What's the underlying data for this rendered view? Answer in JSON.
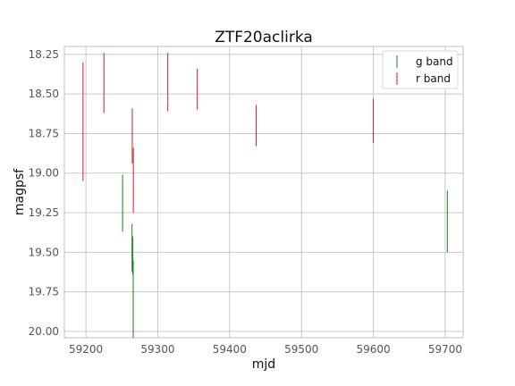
{
  "chart_data": {
    "type": "scatter",
    "title": "ZTF20aclirka",
    "xlabel": "mjd",
    "ylabel": "magpsf",
    "xlim": [
      59170,
      59725
    ],
    "ylim": [
      20.04,
      18.2
    ],
    "y_inverted": true,
    "grid": true,
    "legend_position": "top-right",
    "x_ticks": [
      59200,
      59300,
      59400,
      59500,
      59600,
      59700
    ],
    "y_ticks": [
      18.25,
      18.5,
      18.75,
      19.0,
      19.25,
      19.5,
      19.75,
      20.0
    ],
    "y_tick_labels": [
      "18.25",
      "18.50",
      "18.75",
      "19.00",
      "19.25",
      "19.50",
      "19.75",
      "20.00"
    ],
    "series": [
      {
        "name": "g band",
        "color": "#1a7f1a",
        "points": [
          {
            "x": 59251.0,
            "ymin": 19.01,
            "ymax": 19.37
          },
          {
            "x": 59264.2,
            "ymin": 19.32,
            "ymax": 19.62
          },
          {
            "x": 59265.1,
            "ymin": 19.4,
            "ymax": 19.64
          },
          {
            "x": 59265.8,
            "ymin": 19.55,
            "ymax": 20.04
          },
          {
            "x": 59703.0,
            "ymin": 19.11,
            "ymax": 19.5
          }
        ]
      },
      {
        "name": "r band",
        "color": "#cc1f1f",
        "points": [
          {
            "x": 59196.0,
            "ymin": 18.3,
            "ymax": 19.05
          },
          {
            "x": 59225.0,
            "ymin": 18.24,
            "ymax": 18.62
          },
          {
            "x": 59264.5,
            "ymin": 18.59,
            "ymax": 18.94
          },
          {
            "x": 59266.0,
            "ymin": 18.84,
            "ymax": 19.25
          },
          {
            "x": 59314.0,
            "ymin": 18.24,
            "ymax": 18.61
          },
          {
            "x": 59355.0,
            "ymin": 18.34,
            "ymax": 18.6
          },
          {
            "x": 59437.0,
            "ymin": 18.57,
            "ymax": 18.83
          },
          {
            "x": 59600.0,
            "ymin": 18.53,
            "ymax": 18.81
          }
        ]
      }
    ]
  }
}
